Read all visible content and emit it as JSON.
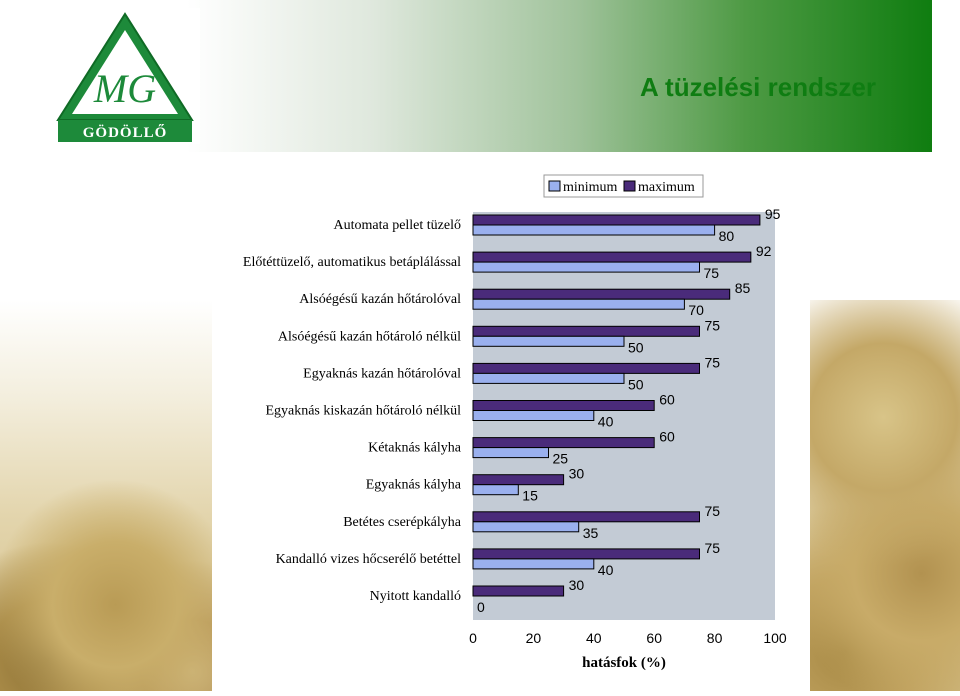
{
  "header": {
    "title": "A tüzelési rendszer",
    "logo_text": "GÖDÖLLŐ",
    "logo_monogram": "MG"
  },
  "colors": {
    "minimum": "#9ab0ee",
    "maximum": "#4a2b7a",
    "plot_bg": "#c3cbd5",
    "title_green": "#0f7d12"
  },
  "chart_data": {
    "type": "bar",
    "orientation": "horizontal",
    "categories": [
      "Automata pellet tüzelő",
      "Előtéttüzelő, automatikus betáplálással",
      "Alsóégésű kazán hőtárolóval",
      "Alsóégésű kazán hőtároló nélkül",
      "Egyaknás kazán hőtárolóval",
      "Egyaknás kiskazán hőtároló nélkül",
      "Kétaknás kályha",
      "Egyaknás kályha",
      "Betétes cserépkályha",
      "Kandalló vizes hőcserélő betéttel",
      "Nyitott kandalló"
    ],
    "series": [
      {
        "name": "minimum",
        "values": [
          80,
          75,
          70,
          50,
          50,
          40,
          25,
          15,
          35,
          40,
          0
        ]
      },
      {
        "name": "maximum",
        "values": [
          95,
          92,
          85,
          75,
          75,
          60,
          60,
          30,
          75,
          75,
          30
        ]
      }
    ],
    "xlabel": "hatásfok (%)",
    "xlim": [
      0,
      100
    ],
    "xticks": [
      "0",
      "20",
      "40",
      "60",
      "80",
      "100"
    ],
    "legend_position": "top",
    "grid": false
  }
}
